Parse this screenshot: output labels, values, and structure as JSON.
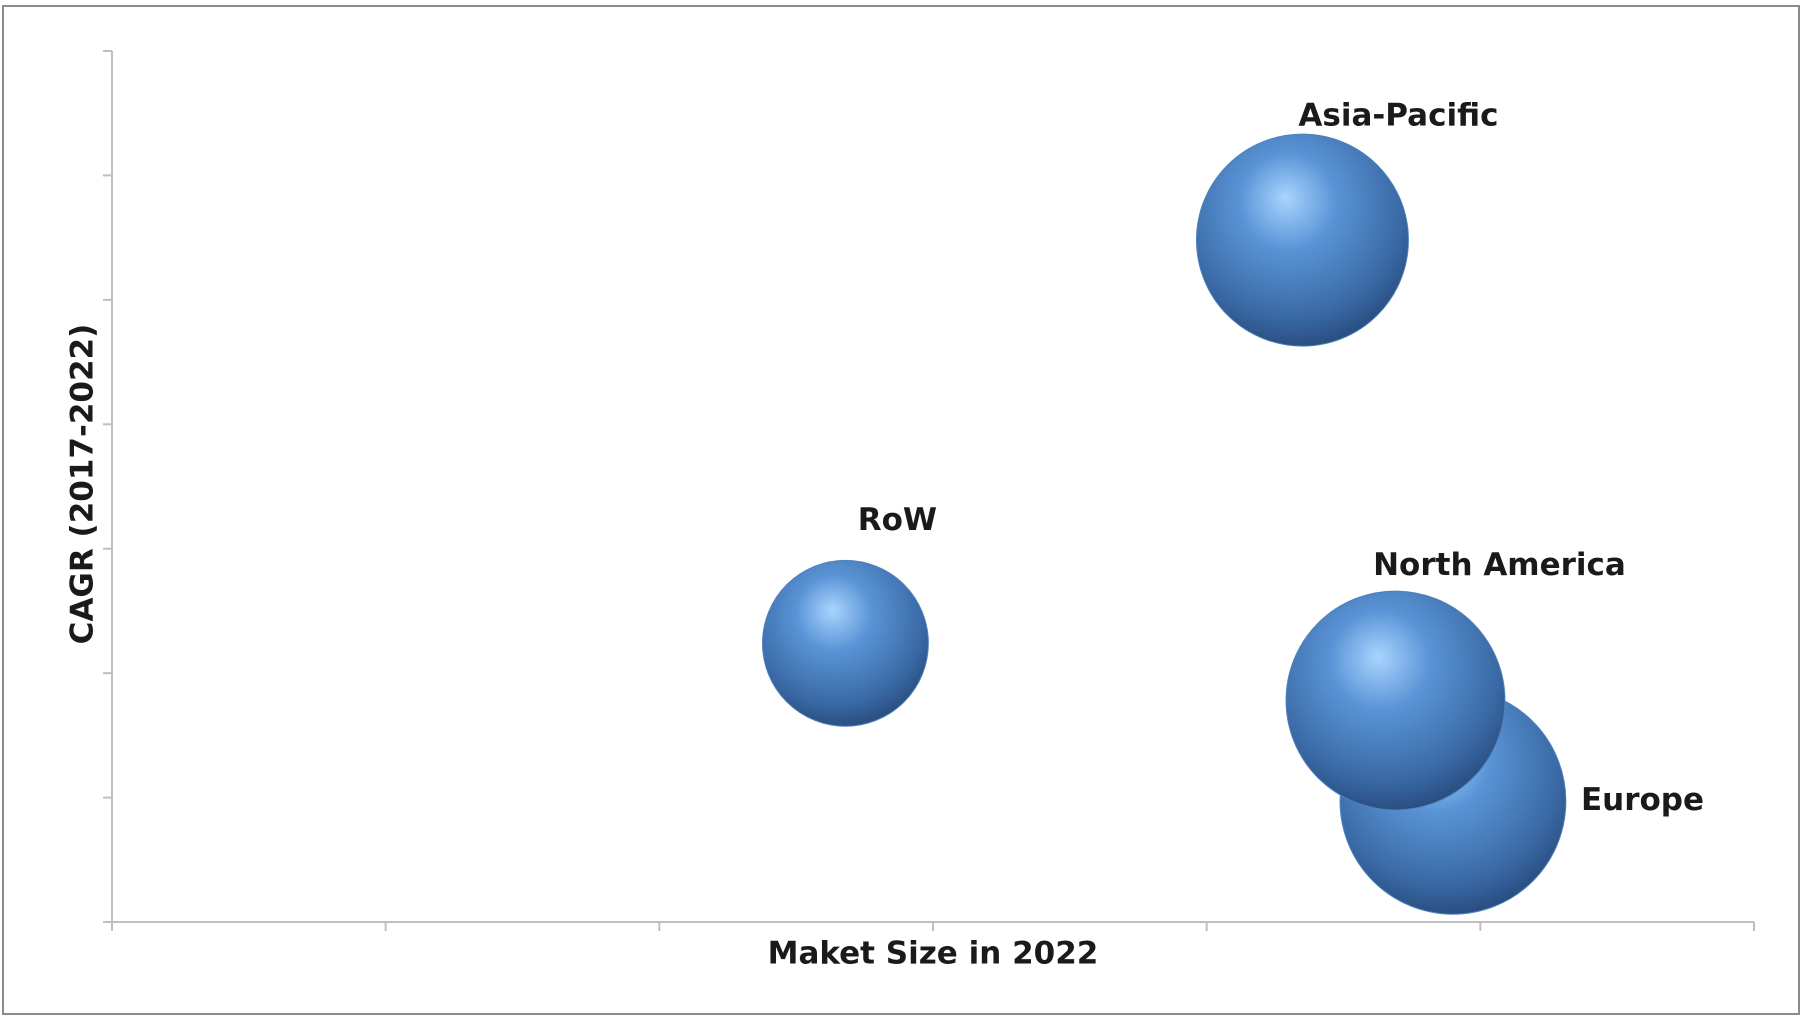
{
  "chart_data": {
    "type": "bubble",
    "xlabel": "Maket Size in 2022",
    "ylabel": "CAGR (2017-2022)",
    "categories": [
      "Asia-Pacific",
      "RoW",
      "North America",
      "Europe"
    ],
    "x": [
      4.35,
      2.68,
      4.69,
      4.9
    ],
    "values": [
      5.48,
      2.24,
      1.78,
      0.97
    ],
    "sizes": [
      92,
      72,
      95,
      98
    ],
    "color": "#4f81bd",
    "xlim": [
      0,
      6
    ],
    "xticks": [
      0,
      1,
      2,
      3,
      4,
      5,
      6
    ],
    "ylim": [
      0,
      7
    ],
    "yticks": [
      0,
      1,
      2,
      3,
      4,
      5,
      6,
      7
    ],
    "grid": false
  }
}
